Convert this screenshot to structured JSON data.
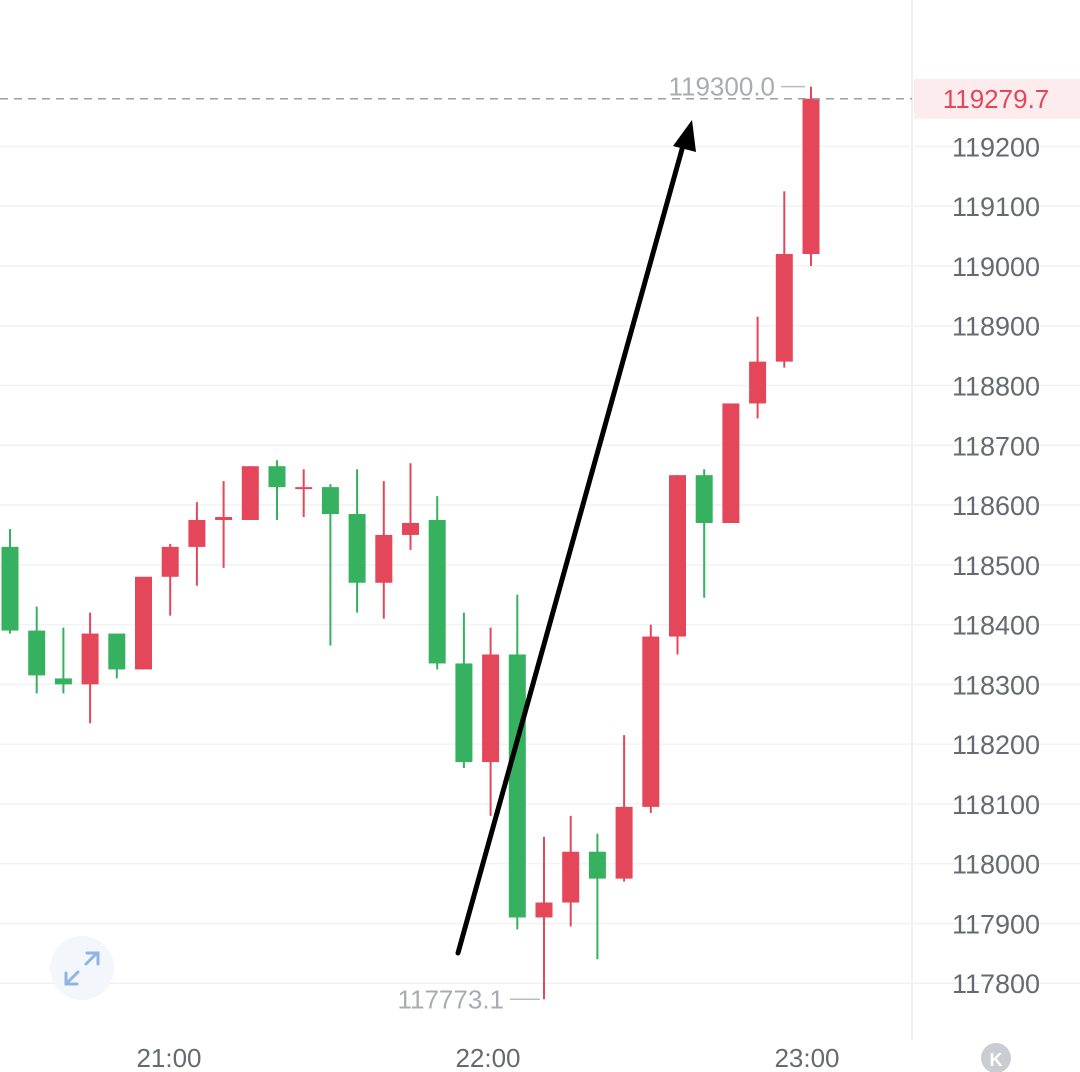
{
  "chart_data": {
    "type": "candlestick",
    "x_tick_labels": [
      "21:00",
      "22:00",
      "23:00"
    ],
    "y_ticks": [
      117800,
      117900,
      118000,
      118100,
      118200,
      118300,
      118400,
      118500,
      118600,
      118700,
      118800,
      118900,
      119000,
      119100,
      119200
    ],
    "y_tick_labels": [
      "117800",
      "117900",
      "118000",
      "118100",
      "118200",
      "118300",
      "118400",
      "118500",
      "118600",
      "118700",
      "118800",
      "118900",
      "119000",
      "119100",
      "119200"
    ],
    "ylim": [
      117705,
      119445
    ],
    "current_price": 119279.7,
    "current_price_label": "119279.7",
    "high_label": "119300.0",
    "low_label": "117773.1",
    "up_color": "#e5475a",
    "down_color": "#36b15f",
    "grid": true,
    "candles": [
      {
        "o": 118530,
        "h": 118560,
        "l": 118385,
        "c": 118390
      },
      {
        "o": 118390,
        "h": 118430,
        "l": 118285,
        "c": 118315
      },
      {
        "o": 118310,
        "h": 118395,
        "l": 118285,
        "c": 118300
      },
      {
        "o": 118300,
        "h": 118420,
        "l": 118235,
        "c": 118385
      },
      {
        "o": 118385,
        "h": 118385,
        "l": 118310,
        "c": 118325
      },
      {
        "o": 118325,
        "h": 118480,
        "l": 118325,
        "c": 118480
      },
      {
        "o": 118480,
        "h": 118535,
        "l": 118415,
        "c": 118530
      },
      {
        "o": 118530,
        "h": 118605,
        "l": 118465,
        "c": 118575
      },
      {
        "o": 118575,
        "h": 118640,
        "l": 118495,
        "c": 118580
      },
      {
        "o": 118575,
        "h": 118665,
        "l": 118575,
        "c": 118665
      },
      {
        "o": 118665,
        "h": 118675,
        "l": 118575,
        "c": 118630
      },
      {
        "o": 118630,
        "h": 118660,
        "l": 118580,
        "c": 118630
      },
      {
        "o": 118630,
        "h": 118635,
        "l": 118365,
        "c": 118585
      },
      {
        "o": 118585,
        "h": 118660,
        "l": 118420,
        "c": 118470
      },
      {
        "o": 118470,
        "h": 118640,
        "l": 118410,
        "c": 118550
      },
      {
        "o": 118550,
        "h": 118670,
        "l": 118525,
        "c": 118570
      },
      {
        "o": 118575,
        "h": 118615,
        "l": 118325,
        "c": 118335
      },
      {
        "o": 118335,
        "h": 118420,
        "l": 118160,
        "c": 118170
      },
      {
        "o": 118170,
        "h": 118395,
        "l": 118080,
        "c": 118350
      },
      {
        "o": 118350,
        "h": 118450,
        "l": 117890,
        "c": 117910
      },
      {
        "o": 117910,
        "h": 118045,
        "l": 117773.1,
        "c": 117935
      },
      {
        "o": 117935,
        "h": 118080,
        "l": 117895,
        "c": 118020
      },
      {
        "o": 118020,
        "h": 118050,
        "l": 117840,
        "c": 117975
      },
      {
        "o": 117975,
        "h": 118215,
        "l": 117970,
        "c": 118095
      },
      {
        "o": 118095,
        "h": 118400,
        "l": 118085,
        "c": 118380
      },
      {
        "o": 118380,
        "h": 118650,
        "l": 118350,
        "c": 118650
      },
      {
        "o": 118650,
        "h": 118660,
        "l": 118445,
        "c": 118570
      },
      {
        "o": 118570,
        "h": 118770,
        "l": 118570,
        "c": 118770
      },
      {
        "o": 118770,
        "h": 118915,
        "l": 118745,
        "c": 118840
      },
      {
        "o": 118840,
        "h": 119125,
        "l": 118830,
        "c": 119020
      },
      {
        "o": 119020,
        "h": 119300,
        "l": 119000,
        "c": 119279.7
      }
    ]
  },
  "ui": {
    "expand_icon": "expand-arrows-icon",
    "logo_icon": "k-logo-icon",
    "logo_text": "K",
    "accent_color": "#e5475a",
    "arrow_color": "#000000"
  }
}
